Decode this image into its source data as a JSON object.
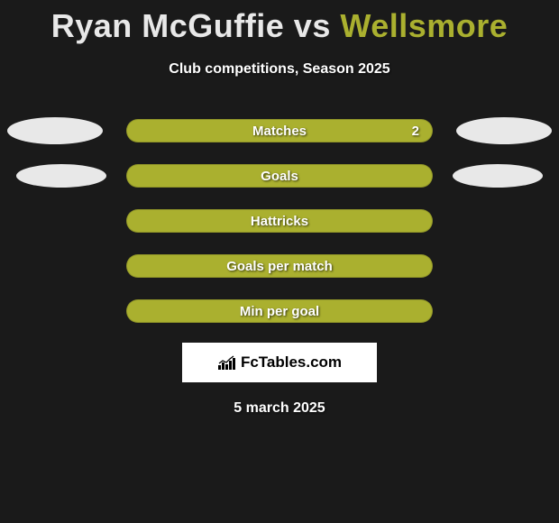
{
  "title": {
    "player1": "Ryan McGuffie",
    "vs": "vs",
    "player2": "Wellsmore",
    "player1_color": "#e8e8e8",
    "player2_color": "#aab02f",
    "vs_color": "#e8e8e8",
    "fontsize": 36
  },
  "subtitle": "Club competitions, Season 2025",
  "background_color": "#1a1a1a",
  "rows": [
    {
      "label": "Matches",
      "value": "2",
      "pill_color": "#aab02f",
      "ellipse_left_color": "#e8e8e8",
      "ellipse_right_color": "#e8e8e8",
      "show_ellipses": true,
      "ellipse_variant": "r1"
    },
    {
      "label": "Goals",
      "value": "",
      "pill_color": "#aab02f",
      "ellipse_left_color": "#e8e8e8",
      "ellipse_right_color": "#e8e8e8",
      "show_ellipses": true,
      "ellipse_variant": "r2"
    },
    {
      "label": "Hattricks",
      "value": "",
      "pill_color": "#aab02f",
      "show_ellipses": false
    },
    {
      "label": "Goals per match",
      "value": "",
      "pill_color": "#aab02f",
      "show_ellipses": false
    },
    {
      "label": "Min per goal",
      "value": "",
      "pill_color": "#aab02f",
      "show_ellipses": false
    }
  ],
  "brand": {
    "text": "FcTables.com",
    "box_bg": "#ffffff",
    "icon_color": "#000000"
  },
  "date": "5 march 2025"
}
